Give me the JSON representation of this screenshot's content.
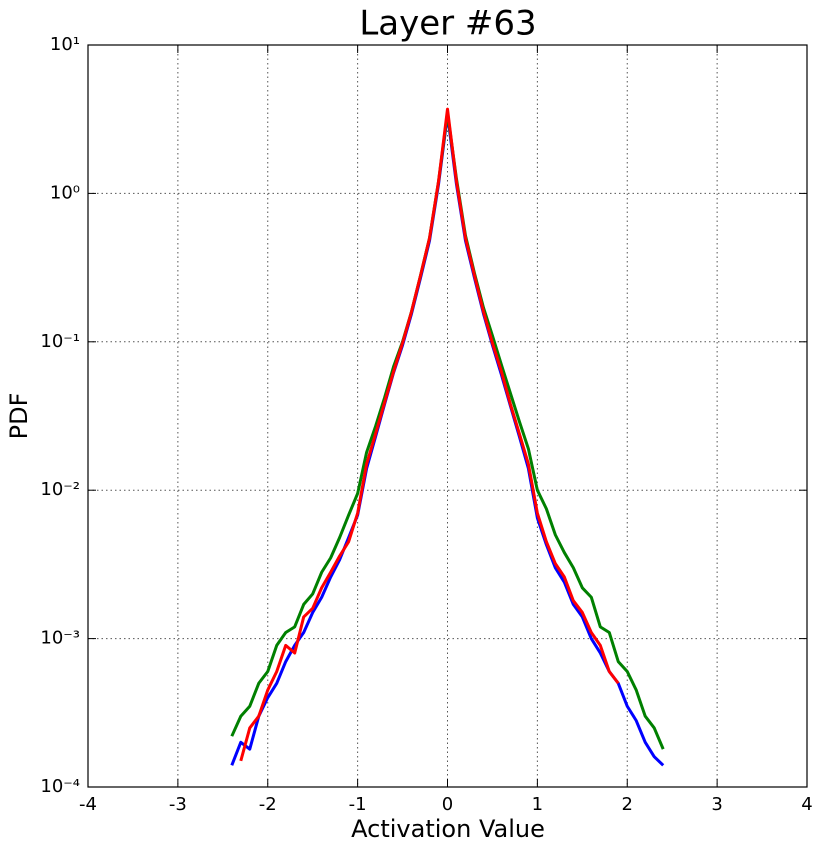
{
  "chart_data": {
    "type": "line",
    "title": "Layer #63",
    "x_label": "Activation Value",
    "y_label": "PDF",
    "log_y": true,
    "grid": true,
    "xlim": [
      -4,
      4
    ],
    "xticks": [
      -4,
      -3,
      -2,
      -1,
      0,
      1,
      2,
      3,
      4
    ],
    "ylim": [
      0.0001,
      10
    ],
    "yticks": [
      {
        "value": 0.0001,
        "label": "10⁻⁴"
      },
      {
        "value": 0.001,
        "label": "10⁻³"
      },
      {
        "value": 0.01,
        "label": "10⁻²"
      },
      {
        "value": 0.1,
        "label": "10⁻¹"
      },
      {
        "value": 1,
        "label": "10⁰"
      },
      {
        "value": 10,
        "label": "10¹"
      }
    ],
    "x": [
      -2.4,
      -2.3,
      -2.2,
      -2.1,
      -2.0,
      -1.9,
      -1.8,
      -1.7,
      -1.6,
      -1.5,
      -1.4,
      -1.3,
      -1.2,
      -1.1,
      -1.0,
      -0.9,
      -0.8,
      -0.7,
      -0.6,
      -0.5,
      -0.4,
      -0.3,
      -0.2,
      -0.1,
      0,
      0.1,
      0.2,
      0.3,
      0.4,
      0.5,
      0.6,
      0.7,
      0.8,
      0.9,
      1.0,
      1.1,
      1.2,
      1.3,
      1.4,
      1.5,
      1.6,
      1.7,
      1.8,
      1.9,
      2.0,
      2.1,
      2.2,
      2.3,
      2.4
    ],
    "series": [
      {
        "color": "#0000ff",
        "values": [
          0.00014,
          0.0002,
          0.00018,
          0.0003,
          0.0004,
          0.0005,
          0.0007,
          0.0009,
          0.0011,
          0.0015,
          0.0019,
          0.0026,
          0.0034,
          0.0048,
          0.0068,
          0.014,
          0.023,
          0.038,
          0.062,
          0.095,
          0.155,
          0.27,
          0.48,
          1.15,
          3.4,
          1.15,
          0.48,
          0.27,
          0.155,
          0.095,
          0.06,
          0.037,
          0.023,
          0.014,
          0.0065,
          0.0043,
          0.003,
          0.0024,
          0.0017,
          0.0014,
          0.001,
          0.0008,
          0.0006,
          0.0005,
          0.00035,
          0.00028,
          0.0002,
          0.00016,
          0.00014
        ]
      },
      {
        "color": "#008000",
        "values": [
          0.00022,
          0.0003,
          0.00035,
          0.0005,
          0.0006,
          0.0009,
          0.0011,
          0.0012,
          0.0017,
          0.002,
          0.0028,
          0.0035,
          0.0048,
          0.0068,
          0.0095,
          0.018,
          0.027,
          0.042,
          0.068,
          0.1,
          0.16,
          0.28,
          0.5,
          1.2,
          3.5,
          1.25,
          0.52,
          0.29,
          0.17,
          0.11,
          0.07,
          0.045,
          0.029,
          0.019,
          0.01,
          0.0075,
          0.005,
          0.0038,
          0.003,
          0.0022,
          0.0019,
          0.0012,
          0.0011,
          0.0007,
          0.0006,
          0.00045,
          0.0003,
          0.00025,
          0.00018
        ]
      },
      {
        "color": "#ff0000",
        "values": [
          null,
          0.00015,
          0.00025,
          0.0003,
          0.00045,
          0.0006,
          0.0009,
          0.0008,
          0.0014,
          0.0016,
          0.0022,
          0.0028,
          0.0036,
          0.0045,
          0.007,
          0.015,
          0.024,
          0.039,
          0.063,
          0.098,
          0.16,
          0.28,
          0.5,
          1.2,
          3.7,
          1.2,
          0.5,
          0.28,
          0.16,
          0.098,
          0.063,
          0.038,
          0.024,
          0.015,
          0.007,
          0.0045,
          0.0032,
          0.0026,
          0.0018,
          0.0015,
          0.0011,
          0.0009,
          0.0006,
          0.0005,
          null,
          null,
          null,
          null,
          null
        ]
      }
    ]
  }
}
